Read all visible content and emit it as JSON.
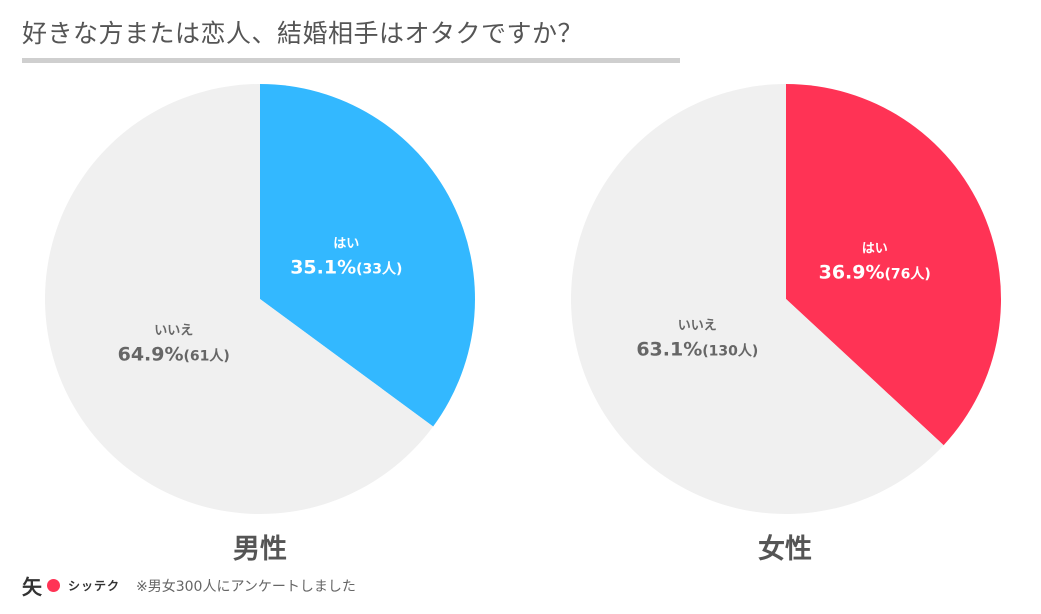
{
  "title": "好きな方または恋人、結婚相手はオタクですか？",
  "colors": {
    "male_yes": "#33b8ff",
    "female_yes": "#ff3355",
    "no": "#f0f0f0",
    "label_on_color": "#ffffff",
    "label_on_gray": "#666666"
  },
  "chart_data": [
    {
      "type": "pie",
      "title": "男性",
      "slices": [
        {
          "label": "はい",
          "percent": 35.1,
          "count": 33,
          "value_text": "35.1%",
          "count_text": "(33人)"
        },
        {
          "label": "いいえ",
          "percent": 64.9,
          "count": 61,
          "value_text": "64.9%",
          "count_text": "(61人)"
        }
      ]
    },
    {
      "type": "pie",
      "title": "女性",
      "slices": [
        {
          "label": "はい",
          "percent": 36.9,
          "count": 76,
          "value_text": "36.9%",
          "count_text": "(76人)"
        },
        {
          "label": "いいえ",
          "percent": 63.1,
          "count": 130,
          "value_text": "63.1%",
          "count_text": "(130人)"
        }
      ]
    }
  ],
  "footer": {
    "logo_kanji": "矢",
    "logo_text": "シッテク",
    "note": "※男女300人にアンケートしました"
  }
}
